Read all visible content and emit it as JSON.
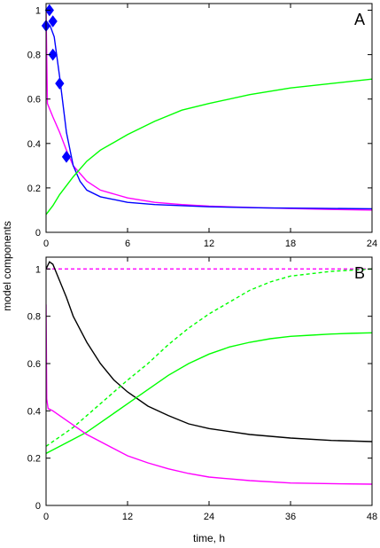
{
  "shared": {
    "ylabel": "model components",
    "xlabel": "time, h"
  },
  "chart_data": [
    {
      "type": "line",
      "panel_label": "A",
      "xlim": [
        0,
        24
      ],
      "ylim": [
        0,
        1.03
      ],
      "x_ticks": [
        0,
        6,
        12,
        18,
        24
      ],
      "y_ticks": [
        0,
        0.2,
        0.4,
        0.6,
        0.8,
        1
      ],
      "y_tick_labels": [
        "0",
        "0.2",
        "0.4",
        "0.6",
        "0.8",
        "1"
      ],
      "series": [
        {
          "color": "#ff00ff",
          "dash": false,
          "x": [
            0,
            0.1,
            0.3,
            0.5,
            1,
            1.5,
            2,
            3,
            4,
            6,
            8,
            10,
            12,
            15,
            18,
            21,
            24
          ],
          "y": [
            1.0,
            0.58,
            0.55,
            0.52,
            0.45,
            0.37,
            0.3,
            0.23,
            0.19,
            0.155,
            0.135,
            0.125,
            0.118,
            0.112,
            0.107,
            0.103,
            0.1
          ]
        },
        {
          "color": "#0000ff",
          "dash": false,
          "x": [
            0,
            0.3,
            0.6,
            1,
            1.5,
            2,
            2.5,
            3,
            4,
            6,
            8,
            12,
            16,
            20,
            24
          ],
          "y": [
            0.93,
            0.93,
            0.88,
            0.7,
            0.45,
            0.3,
            0.23,
            0.19,
            0.16,
            0.135,
            0.125,
            0.115,
            0.11,
            0.108,
            0.106
          ]
        },
        {
          "color": "#00ff00",
          "dash": false,
          "x": [
            0,
            0.5,
            1,
            2,
            3,
            4,
            6,
            8,
            10,
            12,
            15,
            18,
            21,
            24
          ],
          "y": [
            0.08,
            0.12,
            0.17,
            0.25,
            0.32,
            0.37,
            0.44,
            0.5,
            0.55,
            0.58,
            0.62,
            0.65,
            0.67,
            0.69
          ]
        }
      ],
      "markers": {
        "color": "#0000ff",
        "shape": "diamond",
        "x": [
          0,
          0.25,
          0.5,
          0.5,
          1,
          1.5
        ],
        "y": [
          0.93,
          1.0,
          0.95,
          0.8,
          0.67,
          0.34
        ]
      }
    },
    {
      "type": "line",
      "panel_label": "B",
      "xlim": [
        0,
        48
      ],
      "ylim": [
        0,
        1.05
      ],
      "x_ticks": [
        0,
        12,
        24,
        36,
        48
      ],
      "y_ticks": [
        0,
        0.2,
        0.4,
        0.6,
        0.8,
        1
      ],
      "y_tick_labels": [
        "0",
        "0.2",
        "0.4",
        "0.6",
        "0.8",
        "1"
      ],
      "series": [
        {
          "color": "#ff00ff",
          "dash": true,
          "x": [
            0,
            48
          ],
          "y": [
            1.0,
            1.0
          ]
        },
        {
          "color": "#000000",
          "dash": false,
          "x": [
            0,
            0.5,
            1,
            2,
            3,
            4,
            6,
            8,
            10,
            12,
            15,
            18,
            21,
            24,
            30,
            36,
            42,
            48
          ],
          "y": [
            1.0,
            1.03,
            1.02,
            0.95,
            0.88,
            0.8,
            0.69,
            0.6,
            0.53,
            0.48,
            0.42,
            0.38,
            0.345,
            0.325,
            0.3,
            0.285,
            0.275,
            0.27
          ]
        },
        {
          "color": "#00ff00",
          "dash": true,
          "x": [
            0,
            2,
            4,
            6,
            8,
            10,
            12,
            15,
            18,
            21,
            24,
            27,
            30,
            33,
            36,
            39,
            42,
            45,
            48
          ],
          "y": [
            0.25,
            0.29,
            0.33,
            0.38,
            0.43,
            0.48,
            0.53,
            0.6,
            0.68,
            0.75,
            0.81,
            0.86,
            0.91,
            0.945,
            0.97,
            0.98,
            0.99,
            0.995,
            1.0
          ]
        },
        {
          "color": "#00ff00",
          "dash": false,
          "x": [
            0,
            2,
            4,
            6,
            8,
            10,
            12,
            15,
            18,
            21,
            24,
            27,
            30,
            33,
            36,
            39,
            42,
            45,
            48
          ],
          "y": [
            0.22,
            0.25,
            0.28,
            0.31,
            0.35,
            0.39,
            0.43,
            0.49,
            0.55,
            0.6,
            0.64,
            0.67,
            0.69,
            0.705,
            0.715,
            0.72,
            0.725,
            0.728,
            0.73
          ]
        },
        {
          "color": "#ff00ff",
          "dash": false,
          "x": [
            0,
            0.1,
            0.3,
            1,
            2,
            4,
            6,
            8,
            10,
            12,
            15,
            18,
            21,
            24,
            30,
            36,
            42,
            48
          ],
          "y": [
            0.85,
            0.45,
            0.41,
            0.4,
            0.38,
            0.34,
            0.3,
            0.27,
            0.24,
            0.21,
            0.18,
            0.155,
            0.135,
            0.12,
            0.105,
            0.095,
            0.092,
            0.09
          ]
        }
      ]
    }
  ]
}
